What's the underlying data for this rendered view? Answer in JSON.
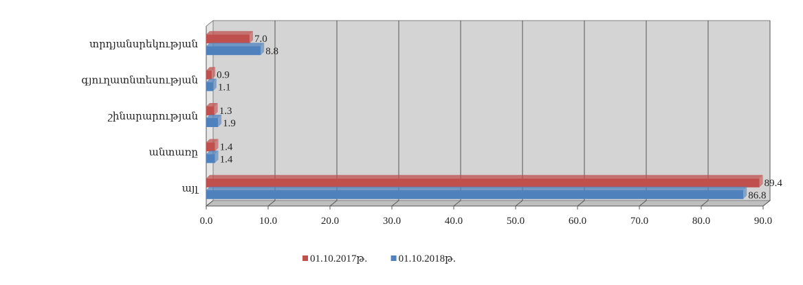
{
  "caption": "",
  "chart_data": {
    "type": "bar",
    "orientation": "horizontal",
    "title": "",
    "xlabel": "",
    "ylabel": "",
    "xlim": [
      0,
      90
    ],
    "x_ticks": [
      "0.0",
      "10.0",
      "20.0",
      "30.0",
      "40.0",
      "50.0",
      "60.0",
      "70.0",
      "80.0",
      "90.0"
    ],
    "grid": true,
    "legend_position": "bottom",
    "categories": [
      "տրդյանսրեկության",
      "գյուղատնտեսության",
      "շինարարության",
      "անտառը",
      "այլ"
    ],
    "series": [
      {
        "name": "01.10.2017թ.",
        "color": "#c0504d",
        "values": [
          7.0,
          0.9,
          1.3,
          1.4,
          89.4
        ],
        "labels": [
          "7.0",
          "0.9",
          "1.3",
          "1.4",
          "89.4"
        ]
      },
      {
        "name": "01.10.2018թ.",
        "color": "#4f81bd",
        "values": [
          8.8,
          1.1,
          1.9,
          1.4,
          86.8
        ],
        "labels": [
          "8.8",
          "1.1",
          "1.9",
          "1.4",
          "86.8"
        ]
      }
    ]
  }
}
